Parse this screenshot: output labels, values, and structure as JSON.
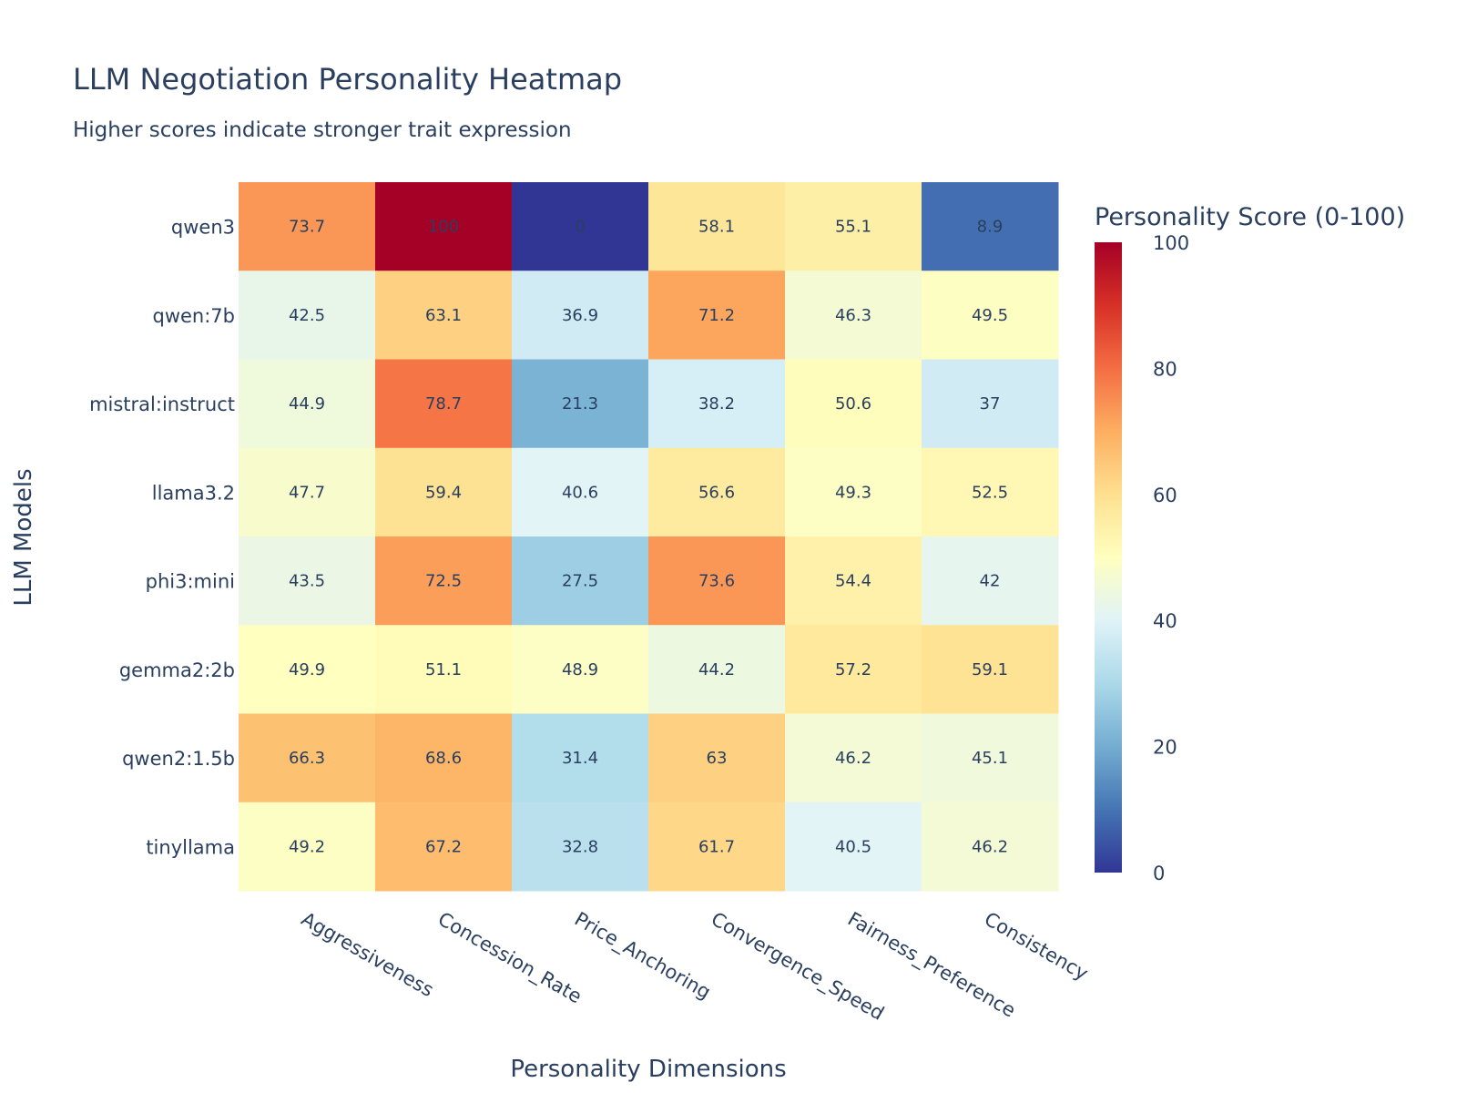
{
  "chart_data": {
    "type": "heatmap",
    "title": "LLM Negotiation Personality Heatmap",
    "subtitle": "Higher scores indicate stronger trait expression",
    "xlabel": "Personality Dimensions",
    "ylabel": "LLM Models",
    "x": [
      "Aggressiveness",
      "Concession_Rate",
      "Price_Anchoring",
      "Convergence_Speed",
      "Fairness_Preference",
      "Consistency"
    ],
    "y": [
      "qwen3",
      "qwen:7b",
      "mistral:instruct",
      "llama3.2",
      "phi3:mini",
      "gemma2:2b",
      "qwen2:1.5b",
      "tinyllama"
    ],
    "z": [
      [
        73.7,
        100,
        0,
        58.1,
        55.1,
        8.9
      ],
      [
        42.5,
        63.1,
        36.9,
        71.2,
        46.3,
        49.5
      ],
      [
        44.9,
        78.7,
        21.3,
        38.2,
        50.6,
        37
      ],
      [
        47.7,
        59.4,
        40.6,
        56.6,
        49.3,
        52.5
      ],
      [
        43.5,
        72.5,
        27.5,
        73.6,
        54.4,
        42
      ],
      [
        49.9,
        51.1,
        48.9,
        44.2,
        57.2,
        59.1
      ],
      [
        66.3,
        68.6,
        31.4,
        63,
        46.2,
        45.1
      ],
      [
        49.2,
        67.2,
        32.8,
        61.7,
        40.5,
        46.2
      ]
    ],
    "zmin": 0,
    "zmax": 100,
    "colorscale": "RdYlBu reversed",
    "colorscale_stops": [
      "#313695",
      "#4575b4",
      "#74add1",
      "#abd9e9",
      "#e0f3f8",
      "#ffffbf",
      "#fee090",
      "#fdae61",
      "#f46d43",
      "#d73027",
      "#a50026"
    ],
    "colorbar": {
      "title": "Personality Score (0-100)",
      "ticks": [
        0,
        20,
        40,
        60,
        80,
        100
      ]
    }
  }
}
